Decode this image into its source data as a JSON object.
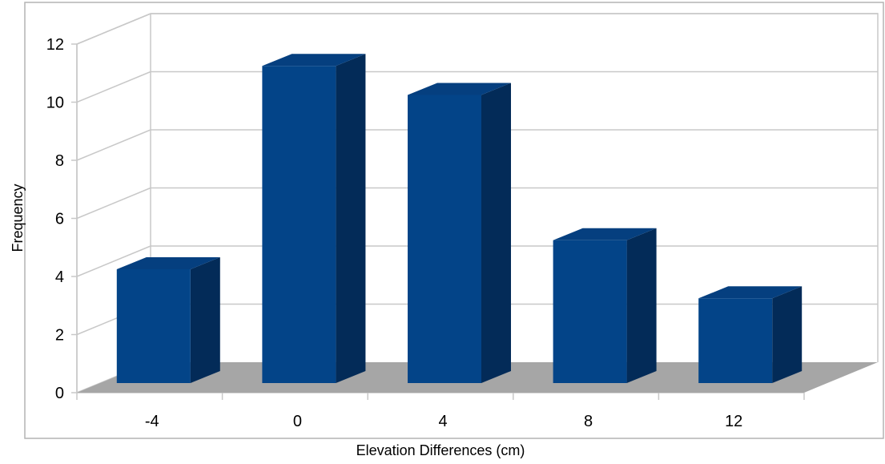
{
  "chart_data": {
    "type": "bar",
    "title": "",
    "xlabel": "Elevation Differences (cm)",
    "ylabel": "Frequency",
    "categories": [
      "-4",
      "0",
      "4",
      "8",
      "12"
    ],
    "values": [
      4,
      11,
      10,
      5,
      3
    ],
    "ylim": [
      0,
      12
    ],
    "yticks": [
      "0",
      "2",
      "4",
      "6",
      "8",
      "10",
      "12"
    ],
    "grid": true,
    "legend": "none",
    "style": "3d-column",
    "colors": {
      "bar_front": "#034488",
      "bar_top": "#053f7f",
      "bar_side": "#032b58",
      "floor": "#a6a6a6",
      "grid": "#c8c8c8",
      "border": "#b4b4b4"
    }
  }
}
